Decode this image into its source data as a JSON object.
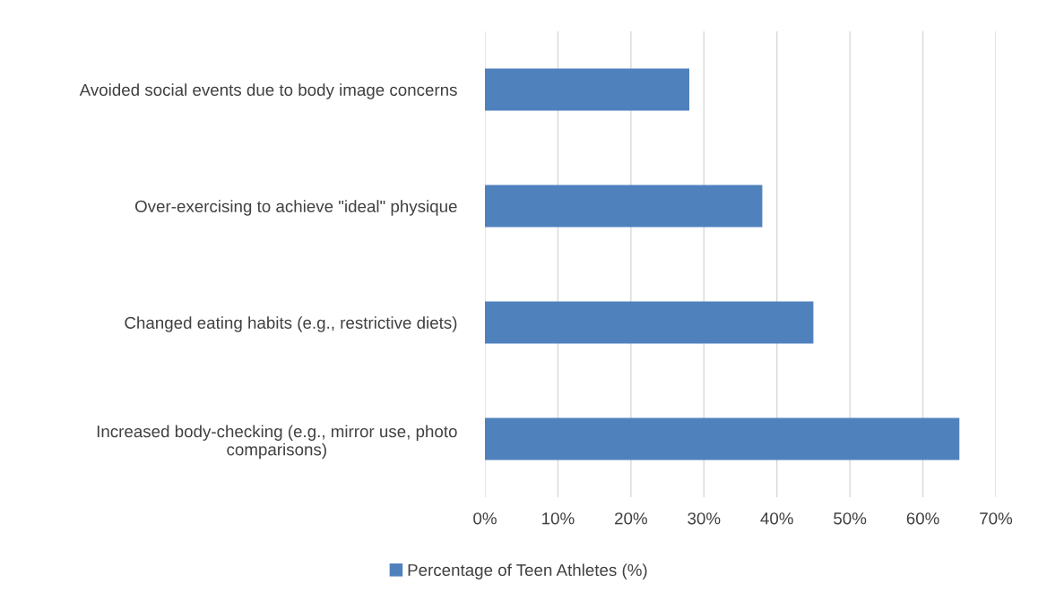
{
  "chart_data": {
    "type": "bar",
    "orientation": "horizontal",
    "categories": [
      "Avoided social events due to body image concerns",
      "Over-exercising to achieve \"ideal\" physique",
      "Changed eating habits (e.g., restrictive diets)",
      "Increased body-checking (e.g., mirror use, photo comparisons)"
    ],
    "series": [
      {
        "name": "Percentage of Teen Athletes (%)",
        "color": "#4f81bd",
        "values": [
          28,
          38,
          45,
          65
        ]
      }
    ],
    "xlim": [
      0,
      70
    ],
    "xticks": [
      {
        "value": 0,
        "label": "0%"
      },
      {
        "value": 10,
        "label": "10%"
      },
      {
        "value": 20,
        "label": "20%"
      },
      {
        "value": 30,
        "label": "30%"
      },
      {
        "value": 40,
        "label": "40%"
      },
      {
        "value": 50,
        "label": "50%"
      },
      {
        "value": 60,
        "label": "60%"
      },
      {
        "value": 70,
        "label": "70%"
      }
    ],
    "grid": "x",
    "legend": "bottom"
  }
}
